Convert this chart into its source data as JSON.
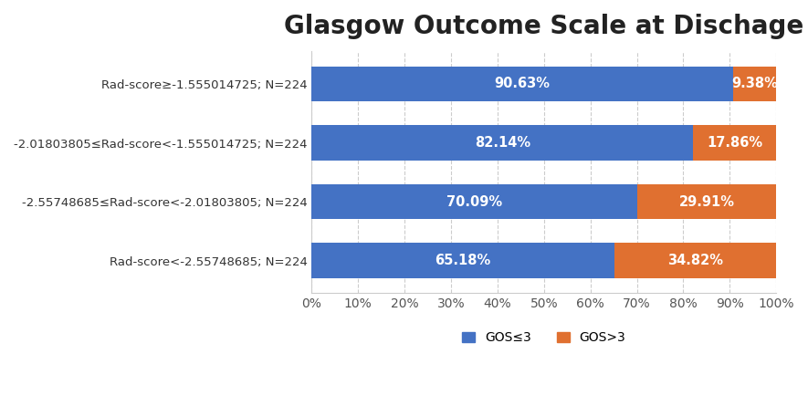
{
  "title": "Glasgow Outcome Scale at Dischage",
  "categories": [
    "Rad-score≥-1.555014725; N=224",
    "-2.01803805≤Rad-score<-1.555014725; N=224",
    "-2.55748685≤Rad-score<-2.01803805; N=224",
    "Rad-score<-2.55748685; N=224"
  ],
  "gos_le3": [
    90.63,
    82.14,
    70.09,
    65.18
  ],
  "gos_gt3": [
    9.38,
    17.86,
    29.91,
    34.82
  ],
  "color_le3": "#4472C4",
  "color_gt3": "#E07030",
  "background_color": "#FFFFFF",
  "plot_bg_color": "#FFFFFF",
  "grid_color": "#CCCCCC",
  "bar_height": 0.6,
  "xlim": [
    0,
    100
  ],
  "xticks": [
    0,
    10,
    20,
    30,
    40,
    50,
    60,
    70,
    80,
    90,
    100
  ],
  "legend_labels": [
    "GOS≤3",
    "GOS>3"
  ],
  "title_fontsize": 20,
  "label_fontsize": 9.5,
  "tick_fontsize": 10,
  "legend_fontsize": 10,
  "annotation_fontsize": 10.5
}
